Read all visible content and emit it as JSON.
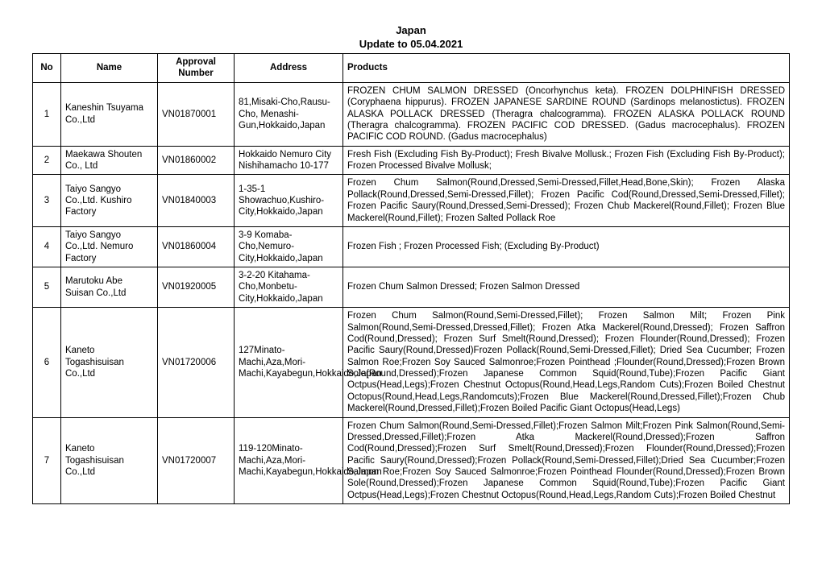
{
  "header": {
    "title": "Japan",
    "subtitle": "Update to 05.04.2021"
  },
  "columns": [
    "No",
    "Name",
    "Approval Number",
    "Address",
    "Products"
  ],
  "rows": [
    {
      "no": "1",
      "name": "Kaneshin Tsuyama Co.,Ltd",
      "approval": "VN01870001",
      "address": "81,Misaki-Cho,Rausu-Cho, Menashi-Gun,Hokkaido,Japan",
      "products": "FROZEN CHUM SALMON DRESSED (Oncorhynchus keta). FROZEN DOLPHINFISH DRESSED (Coryphaena hippurus). FROZEN JAPANESE SARDINE ROUND (Sardinops melanostictus). FROZEN ALASKA POLLACK DRESSED (Theragra chalcogramma). FROZEN ALASKA POLLACK ROUND (Theragra chalcogramma). FROZEN PACIFIC COD DRESSED. (Gadus macrocephalus). FROZEN PACIFIC COD ROUND. (Gadus macrocephalus)"
    },
    {
      "no": "2",
      "name": "Maekawa Shouten Co., Ltd",
      "approval": "VN01860002",
      "address": "Hokkaido Nemuro City Nishihamacho 10-177",
      "products": "Fresh Fish (Excluding Fish By-Product); Fresh Bivalve Mollusk.; Frozen Fish (Excluding Fish By-Product); Frozen Processed Bivalve Mollusk;"
    },
    {
      "no": "3",
      "name": "Taiyo Sangyo Co.,Ltd. Kushiro Factory",
      "approval": "VN01840003",
      "address": "1-35-1 Showachuo,Kushiro-City,Hokkaido,Japan",
      "products": "Frozen Chum Salmon(Round,Dressed,Semi-Dressed,Fillet,Head,Bone,Skin); Frozen Alaska Pollack(Round,Dressed,Semi-Dressed,Fillet); Frozen Pacific Cod(Round,Dressed,Semi-Dressed,Fillet); Frozen Pacific Saury(Round,Dressed,Semi-Dressed); Frozen Chub Mackerel(Round,Fillet); Frozen Blue Mackerel(Round,Fillet); Frozen Salted Pollack Roe"
    },
    {
      "no": "4",
      "name": "Taiyo Sangyo Co.,Ltd. Nemuro Factory",
      "approval": "VN01860004",
      "address": "3-9 Komaba-Cho,Nemuro-City,Hokkaido,Japan",
      "products": "Frozen Fish ; Frozen Processed Fish; (Excluding By-Product)"
    },
    {
      "no": "5",
      "name": "Marutoku  Abe Suisan Co.,Ltd",
      "approval": "VN01920005",
      "address": "3-2-20 Kitahama-Cho,Monbetu-City,Hokkaido,Japan",
      "products": "Frozen Chum Salmon Dressed; Frozen Salmon Dressed"
    },
    {
      "no": "6",
      "name": "Kaneto Togashisuisan Co.,Ltd",
      "approval": "VN01720006",
      "address": "127Minato-Machi,Aza,Mori-Machi,Kayabegun,Hokkaido,Japan",
      "products": "Frozen Chum Salmon(Round,Semi-Dressed,Fillet); Frozen Salmon Milt; Frozen Pink Salmon(Round,Semi-Dressed,Dressed,Fillet); Frozen Atka Mackerel(Round,Dressed); Frozen Saffron Cod(Round,Dressed); Frozen Surf Smelt(Round,Dressed); Frozen Flounder(Round,Dressed); Frozen Pacific Saury(Round,Dressed)Frozen Pollack(Round,Semi-Dressed,Fillet); Dried Sea Cucumber; Frozen Salmon Roe;Frozen Soy Sauced Salmonroe;Frozen Pointhead ;Flounder(Round,Dressed);Frozen Brown Sole(Round,Dressed);Frozen Japanese Common Squid(Round,Tube);Frozen Pacific Giant Octpus(Head,Legs);Frozen Chestnut Octopus(Round,Head,Legs,Random Cuts);Frozen Boiled Chestnut Octopus(Round,Head,Legs,Randomcuts);Frozen Blue Mackerel(Round,Dressed,Fillet);Frozen Chub Mackerel(Round,Dressed,Fillet);Frozen Boiled Pacific Giant Octopus(Head,Legs)"
    },
    {
      "no": "7",
      "name": "Kaneto Togashisuisan Co.,Ltd",
      "approval": "VN01720007",
      "address": "119-120Minato-Machi,Aza,Mori-Machi,Kayabegun,Hokkaido,Japan",
      "products": "Frozen Chum Salmon(Round,Semi-Dressed,Fillet);Frozen Salmon Milt;Frozen Pink Salmon(Round,Semi-Dressed,Dressed,Fillet);Frozen Atka Mackerel(Round,Dressed);Frozen Saffron Cod(Round,Dressed);Frozen Surf Smelt(Round,Dressed);Frozen Flounder(Round,Dressed);Frozen Pacific Saury(Round,Dressed);Frozen Pollack(Round,Semi-Dressed,Fillet);Dried Sea Cucumber;Frozen Salmon Roe;Frozen Soy Sauced Salmonroe;Frozen Pointhead Flounder(Round,Dressed);Frozen Brown Sole(Round,Dressed);Frozen Japanese Common Squid(Round,Tube);Frozen Pacific Giant Octpus(Head,Legs);Frozen Chestnut Octopus(Round,Head,Legs,Random Cuts);Frozen Boiled Chestnut"
    }
  ]
}
